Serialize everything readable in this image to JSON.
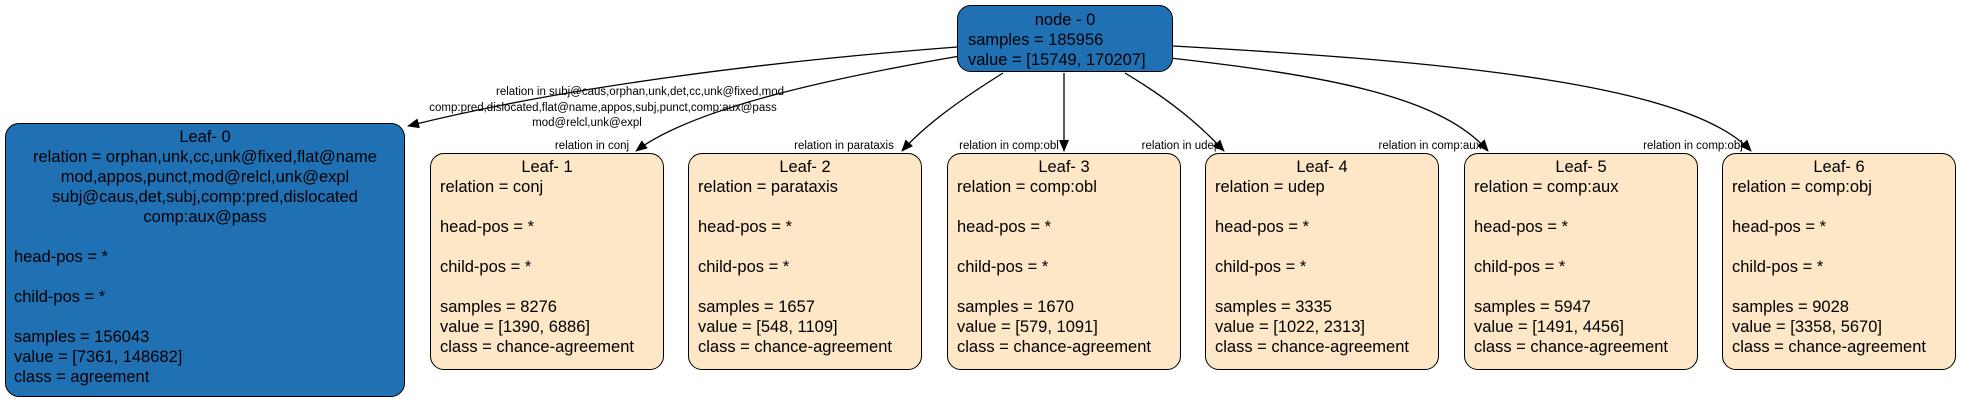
{
  "colors": {
    "blue": "#2070b4",
    "cream": "#fde7c6",
    "edge": "#000000"
  },
  "root": {
    "title": "node - 0",
    "samples": "samples = 185956",
    "value": "value = [15749, 170207]"
  },
  "leaf0": {
    "title": "Leaf- 0",
    "relation_lines": [
      "relation = orphan,unk,cc,unk@fixed,flat@name",
      "mod,appos,punct,mod@relcl,unk@expl",
      "subj@caus,det,subj,comp:pred,dislocated",
      "comp:aux@pass"
    ],
    "head_pos": "head-pos = *",
    "child_pos": "child-pos = *",
    "samples": "samples = 156043",
    "value": "value = [7361, 148682]",
    "class": "class = agreement"
  },
  "leaves": [
    {
      "title": "Leaf- 1",
      "relation": "relation = conj",
      "head_pos": "head-pos = *",
      "child_pos": "child-pos = *",
      "samples": "samples = 8276",
      "value": "value = [1390, 6886]",
      "class": "class = chance-agreement"
    },
    {
      "title": "Leaf- 2",
      "relation": "relation = parataxis",
      "head_pos": "head-pos = *",
      "child_pos": "child-pos = *",
      "samples": "samples = 1657",
      "value": "value = [548, 1109]",
      "class": "class = chance-agreement"
    },
    {
      "title": "Leaf- 3",
      "relation": "relation = comp:obl",
      "head_pos": "head-pos = *",
      "child_pos": "child-pos = *",
      "samples": "samples = 1670",
      "value": "value = [579, 1091]",
      "class": "class = chance-agreement"
    },
    {
      "title": "Leaf- 4",
      "relation": "relation = udep",
      "head_pos": "head-pos = *",
      "child_pos": "child-pos = *",
      "samples": "samples = 3335",
      "value": "value = [1022, 2313]",
      "class": "class = chance-agreement"
    },
    {
      "title": "Leaf- 5",
      "relation": "relation = comp:aux",
      "head_pos": "head-pos = *",
      "child_pos": "child-pos = *",
      "samples": "samples = 5947",
      "value": "value = [1491, 4456]",
      "class": "class = chance-agreement"
    },
    {
      "title": "Leaf- 6",
      "relation": "relation = comp:obj",
      "head_pos": "head-pos = *",
      "child_pos": "child-pos = *",
      "samples": "samples = 9028",
      "value": "value = [3358, 5670]",
      "class": "class = chance-agreement"
    }
  ],
  "edge_labels": {
    "leaf0": [
      "relation in subj@caus,orphan,unk,det,cc,unk@fixed,mod",
      "comp:pred,dislocated,flat@name,appos,subj,punct,comp:aux@pass",
      "mod@relcl,unk@expl"
    ],
    "leaf1": "relation in conj",
    "leaf2": "relation in parataxis",
    "leaf3": "relation in comp:obl",
    "leaf4": "relation in udep",
    "leaf5": "relation in comp:aux",
    "leaf6": "relation in comp:obj"
  }
}
